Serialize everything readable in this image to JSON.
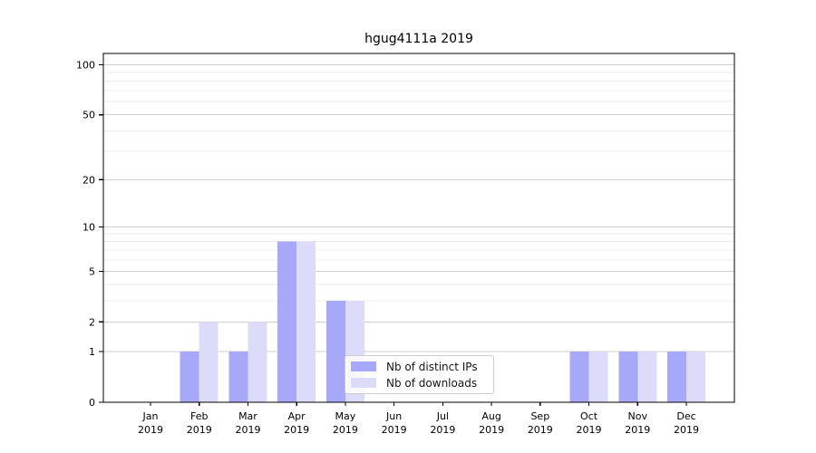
{
  "chart_data": {
    "type": "bar",
    "title": "hgug4111a 2019",
    "categories": [
      "Jan",
      "Feb",
      "Mar",
      "Apr",
      "May",
      "Jun",
      "Jul",
      "Aug",
      "Sep",
      "Oct",
      "Nov",
      "Dec"
    ],
    "x_year": "2019",
    "series": [
      {
        "name": "Nb of distinct IPs",
        "color": "#a8a8f8",
        "values": [
          0,
          1,
          1,
          8,
          3,
          0,
          0,
          0,
          0,
          1,
          1,
          1
        ]
      },
      {
        "name": "Nb of downloads",
        "color": "#dcdcfa",
        "values": [
          0,
          2,
          2,
          8,
          3,
          0,
          0,
          0,
          0,
          1,
          1,
          1
        ]
      }
    ],
    "y_scale": "log1p",
    "y_ticks": [
      0,
      1,
      2,
      5,
      10,
      20,
      50,
      100
    ],
    "y_minor_ticks": [
      3,
      4,
      6,
      7,
      8,
      9,
      30,
      40,
      60,
      70,
      80,
      90
    ],
    "ylim": [
      0,
      117
    ],
    "grid": true,
    "legend_position": "inside-bottom-center",
    "colors": {
      "grid_major": "#cfcfcf",
      "grid_minor": "#ececec",
      "spine": "#000000",
      "tick_label": "#000000"
    }
  }
}
